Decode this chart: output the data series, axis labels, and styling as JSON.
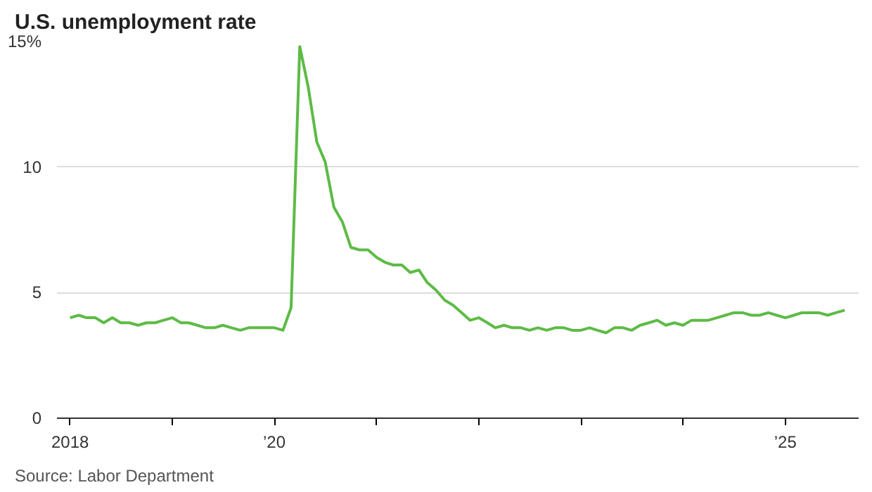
{
  "chart_data": {
    "type": "line",
    "title": "U.S. unemployment rate",
    "x": [
      "2018-01",
      "2018-02",
      "2018-03",
      "2018-04",
      "2018-05",
      "2018-06",
      "2018-07",
      "2018-08",
      "2018-09",
      "2018-10",
      "2018-11",
      "2018-12",
      "2019-01",
      "2019-02",
      "2019-03",
      "2019-04",
      "2019-05",
      "2019-06",
      "2019-07",
      "2019-08",
      "2019-09",
      "2019-10",
      "2019-11",
      "2019-12",
      "2020-01",
      "2020-02",
      "2020-03",
      "2020-04",
      "2020-05",
      "2020-06",
      "2020-07",
      "2020-08",
      "2020-09",
      "2020-10",
      "2020-11",
      "2020-12",
      "2021-01",
      "2021-02",
      "2021-03",
      "2021-04",
      "2021-05",
      "2021-06",
      "2021-07",
      "2021-08",
      "2021-09",
      "2021-10",
      "2021-11",
      "2021-12",
      "2022-01",
      "2022-02",
      "2022-03",
      "2022-04",
      "2022-05",
      "2022-06",
      "2022-07",
      "2022-08",
      "2022-09",
      "2022-10",
      "2022-11",
      "2022-12",
      "2023-01",
      "2023-02",
      "2023-03",
      "2023-04",
      "2023-05",
      "2023-06",
      "2023-07",
      "2023-08",
      "2023-09",
      "2023-10",
      "2023-11",
      "2023-12",
      "2024-01",
      "2024-02",
      "2024-03",
      "2024-04",
      "2024-05",
      "2024-06",
      "2024-07",
      "2024-08",
      "2024-09",
      "2024-10",
      "2024-11",
      "2024-12",
      "2025-01",
      "2025-02",
      "2025-03",
      "2025-04",
      "2025-05",
      "2025-06",
      "2025-07",
      "2025-08"
    ],
    "series": [
      {
        "color": "#5dbb46",
        "values": [
          4.0,
          4.1,
          4.0,
          4.0,
          3.8,
          4.0,
          3.8,
          3.8,
          3.7,
          3.8,
          3.8,
          3.9,
          4.0,
          3.8,
          3.8,
          3.7,
          3.6,
          3.6,
          3.7,
          3.6,
          3.5,
          3.6,
          3.6,
          3.6,
          3.6,
          3.5,
          4.4,
          14.8,
          13.2,
          11.0,
          10.2,
          8.4,
          7.8,
          6.8,
          6.7,
          6.7,
          6.4,
          6.2,
          6.1,
          6.1,
          5.8,
          5.9,
          5.4,
          5.1,
          4.7,
          4.5,
          4.2,
          3.9,
          4.0,
          3.8,
          3.6,
          3.7,
          3.6,
          3.6,
          3.5,
          3.6,
          3.5,
          3.6,
          3.6,
          3.5,
          3.5,
          3.6,
          3.5,
          3.4,
          3.6,
          3.6,
          3.5,
          3.7,
          3.8,
          3.9,
          3.7,
          3.8,
          3.7,
          3.9,
          3.9,
          3.9,
          4.0,
          4.1,
          4.2,
          4.2,
          4.1,
          4.1,
          4.2,
          4.1,
          4.0,
          4.1,
          4.2,
          4.2,
          4.2,
          4.1,
          4.2,
          4.3
        ]
      }
    ],
    "xlim": [
      "2017-11-15",
      "2025-09-20"
    ],
    "xticks": [
      {
        "value": "2018",
        "label": "2018"
      },
      {
        "value": "2019",
        "label": null
      },
      {
        "value": "2020",
        "label": "’20"
      },
      {
        "value": "2021",
        "label": null
      },
      {
        "value": "2022",
        "label": null
      },
      {
        "value": "2023",
        "label": null
      },
      {
        "value": "2024",
        "label": null
      },
      {
        "value": "2025",
        "label": "’25"
      }
    ],
    "ylim": [
      0,
      15
    ],
    "yticks": [
      0,
      5,
      10,
      {
        "value": 15,
        "label": "15%"
      }
    ],
    "grid": "y",
    "line_style": "solid",
    "marker": "none",
    "annotations": [
      "Source: Labor Department"
    ]
  }
}
